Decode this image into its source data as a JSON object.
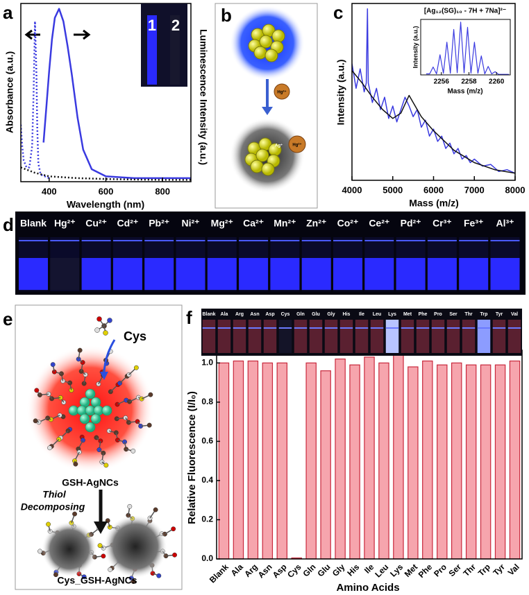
{
  "chart_data": [
    {
      "type": "line",
      "label": "a",
      "xlabel": "Wavelength (nm)",
      "ylabel": "Absorbance (a.u.)",
      "y2label": "Luminescence Intensity (a.u.)",
      "xlim": [
        300,
        900
      ],
      "xticks": [
        400,
        600,
        800
      ],
      "ylim": [
        0,
        1
      ],
      "y2lim": [
        0,
        1
      ],
      "inset_labels": [
        "1",
        "2"
      ],
      "series": [
        {
          "color": "#3a3ae0",
          "dash": "dotted",
          "x": [
            300,
            305,
            310,
            320,
            330,
            340,
            345,
            350,
            355,
            358,
            362,
            370,
            400
          ],
          "values": [
            0.32,
            0.2,
            0.12,
            0.08,
            0.08,
            0.2,
            0.5,
            0.9,
            0.6,
            0.3,
            0.1,
            0.04,
            0.02
          ]
        },
        {
          "color": "#3a3ae0",
          "axis": "y2",
          "x": [
            380,
            390,
            400,
            410,
            420,
            435,
            450,
            465,
            480,
            500,
            520,
            550,
            600,
            700,
            800,
            900
          ],
          "values": [
            0.22,
            0.42,
            0.62,
            0.8,
            0.92,
            0.97,
            0.9,
            0.76,
            0.6,
            0.36,
            0.18,
            0.07,
            0.03,
            0.02,
            0.02,
            0.02
          ]
        },
        {
          "color": "#111111",
          "dash": "dotted",
          "x": [
            300,
            350,
            400,
            500,
            600,
            700,
            800,
            900
          ],
          "values": [
            0.08,
            0.05,
            0.03,
            0.02,
            0.015,
            0.012,
            0.01,
            0.01
          ]
        }
      ]
    },
    {
      "type": "line",
      "label": "c",
      "xlabel": "Mass (m/z)",
      "ylabel": "Intensity (a.u.)",
      "xlim": [
        4000,
        8000
      ],
      "xticks": [
        4000,
        5000,
        6000,
        7000,
        8000
      ],
      "ylim": [
        0,
        1
      ],
      "series": [
        {
          "color": "#3a3ae0",
          "x": [
            4000,
            4100,
            4200,
            4300,
            4350,
            4380,
            4400,
            4500,
            4600,
            4700,
            4800,
            4900,
            5000,
            5100,
            5200,
            5300,
            5400,
            5500,
            5600,
            5700,
            5800,
            5900,
            6000,
            6100,
            6200,
            6300,
            6400,
            6500,
            6600,
            6700,
            6800,
            6900,
            7000,
            7200,
            7400,
            7600,
            7800,
            8000
          ],
          "values": [
            0.66,
            0.52,
            0.63,
            0.5,
            0.55,
            0.97,
            0.55,
            0.44,
            0.52,
            0.4,
            0.47,
            0.35,
            0.42,
            0.33,
            0.4,
            0.47,
            0.42,
            0.36,
            0.4,
            0.3,
            0.34,
            0.25,
            0.29,
            0.22,
            0.25,
            0.18,
            0.21,
            0.15,
            0.18,
            0.12,
            0.14,
            0.1,
            0.12,
            0.08,
            0.09,
            0.05,
            0.06,
            0.04
          ]
        },
        {
          "color": "#111111",
          "x": [
            4000,
            4250,
            4500,
            4750,
            5000,
            5200,
            5400,
            5500,
            5700,
            6000,
            6500,
            7000,
            7500,
            8000
          ],
          "values": [
            0.62,
            0.55,
            0.47,
            0.4,
            0.35,
            0.38,
            0.48,
            0.44,
            0.36,
            0.28,
            0.17,
            0.1,
            0.06,
            0.04
          ]
        }
      ]
    },
    {
      "type": "line",
      "title": "[Ag₁₂(SG)₁₀ - 7H + 7Na]²⁻",
      "xlabel": "Mass (m/z)",
      "ylabel": "Intensity (a.u.)",
      "xlim": [
        2254.5,
        2261
      ],
      "xticks": [
        2256,
        2258,
        2260
      ],
      "ylim": [
        0,
        1.05
      ],
      "series": [
        {
          "color": "#3a3ae0",
          "x": [
            2254.9,
            2255.15,
            2255.4,
            2255.65,
            2255.9,
            2256.15,
            2256.4,
            2256.65,
            2256.9,
            2257.15,
            2257.4,
            2257.65,
            2257.9,
            2258.15,
            2258.4,
            2258.65,
            2258.9,
            2259.15,
            2259.4,
            2259.65,
            2259.9,
            2260.15,
            2260.9
          ],
          "values": [
            0.02,
            0.02,
            0.15,
            0.02,
            0.38,
            0.03,
            0.62,
            0.03,
            0.86,
            0.04,
            1.0,
            0.04,
            0.9,
            0.03,
            0.62,
            0.03,
            0.36,
            0.02,
            0.16,
            0.02,
            0.06,
            0.01,
            0.01
          ]
        }
      ]
    },
    {
      "type": "bar",
      "label": "f",
      "xlabel": "Amino Acids",
      "ylabel": "Relative Fluorescence (I/I₀)",
      "categories": [
        "Blank",
        "Ala",
        "Arg",
        "Asn",
        "Asp",
        "Cys",
        "Gln",
        "Glu",
        "Gly",
        "His",
        "Ile",
        "Leu",
        "Lys",
        "Met",
        "Phe",
        "Pro",
        "Ser",
        "Thr",
        "Trp",
        "Tyr",
        "Val"
      ],
      "values": [
        1.0,
        1.01,
        1.01,
        1.0,
        1.0,
        0.005,
        1.0,
        0.96,
        1.02,
        0.99,
        1.03,
        1.0,
        1.04,
        0.98,
        1.01,
        0.99,
        1.0,
        0.99,
        0.99,
        0.99,
        1.01
      ],
      "color": "#f6a5ad",
      "edgecolor": "#c8283c",
      "ylim": [
        0,
        1.065
      ],
      "yticks": [
        {
          "value": 0,
          "label": "0.0"
        },
        {
          "value": 0.2,
          "label": "0.2"
        },
        {
          "value": 0.4,
          "label": "0.4"
        },
        {
          "value": 0.6,
          "label": "0.6"
        },
        {
          "value": 0.8,
          "label": "0.8"
        },
        {
          "value": 1.0,
          "label": "1.0"
        }
      ],
      "photo_colors": [
        "#5a2030",
        "#5a2030",
        "#5a2030",
        "#5a2030",
        "#5a2030",
        "#141428",
        "#5a2030",
        "#5a2030",
        "#5a2030",
        "#5a2030",
        "#5a2030",
        "#5a2030",
        "#b8c4ff",
        "#5a2030",
        "#5a2030",
        "#5a2030",
        "#5a2030",
        "#5a2030",
        "#8c9cff",
        "#5a2030",
        "#5a2030"
      ]
    }
  ],
  "panel_b": {
    "label": "b",
    "ion": "Hg²⁺",
    "bound_ion": "Hg²⁺",
    "silver_ion": "Ag⁺"
  },
  "panel_d": {
    "label": "d",
    "vials": [
      {
        "label": "Blank",
        "color": "#2a2aff"
      },
      {
        "label": "Hg²⁺",
        "color": "#141430"
      },
      {
        "label": "Cu²⁺",
        "color": "#2a2aff"
      },
      {
        "label": "Cd²⁺",
        "color": "#2a2aff"
      },
      {
        "label": "Pb²⁺",
        "color": "#2a2aff"
      },
      {
        "label": "Ni²⁺",
        "color": "#2a2aff"
      },
      {
        "label": "Mg²⁺",
        "color": "#2a2aff"
      },
      {
        "label": "Ca²⁺",
        "color": "#2a2aff"
      },
      {
        "label": "Mn²⁺",
        "color": "#2a2aff"
      },
      {
        "label": "Zn²⁺",
        "color": "#2a2aff"
      },
      {
        "label": "Co²⁺",
        "color": "#2a2aff"
      },
      {
        "label": "Ce²⁺",
        "color": "#2a2aff"
      },
      {
        "label": "Pd²⁺",
        "color": "#2a2aff"
      },
      {
        "label": "Cr³⁺",
        "color": "#2a2aff"
      },
      {
        "label": "Fe³⁺",
        "color": "#2a2aff"
      },
      {
        "label": "Al³⁺",
        "color": "#2a2aff"
      }
    ]
  },
  "panel_e": {
    "label": "e",
    "reagent": "Cys",
    "before": "GSH-AgNCs",
    "process": [
      "Thiol",
      "Decomposing"
    ],
    "after": "Cys_GSH-AgNCs"
  }
}
